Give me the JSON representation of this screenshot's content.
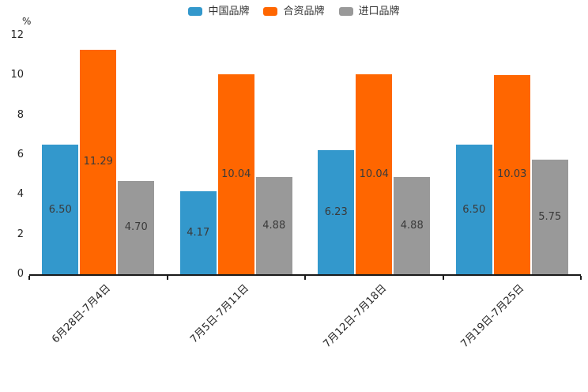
{
  "chart_data": {
    "type": "bar",
    "title": "",
    "unit_label": "%",
    "xlabel": "",
    "ylabel": "%",
    "ylim": [
      0,
      12
    ],
    "yticks": [
      0,
      2,
      4,
      6,
      8,
      10,
      12
    ],
    "grid": false,
    "legend_position": "top",
    "categories": [
      "6月28日-7月4日",
      "7月5日-7月11日",
      "7月12日-7月18日",
      "7月19日-7月25日"
    ],
    "series": [
      {
        "name": "中国品牌",
        "color": "#3398CC",
        "values": [
          6.5,
          4.17,
          6.23,
          6.5
        ],
        "labels": [
          "6.50",
          "4.17",
          "6.23",
          "6.50"
        ]
      },
      {
        "name": "合资品牌",
        "color": "#FF6600",
        "values": [
          11.29,
          10.04,
          10.04,
          10.03
        ],
        "labels": [
          "11.29",
          "10.04",
          "10.04",
          "10.03"
        ]
      },
      {
        "name": "进口品牌",
        "color": "#999999",
        "values": [
          4.7,
          4.88,
          4.88,
          5.75
        ],
        "labels": [
          "4.70",
          "4.88",
          "4.88",
          "5.75"
        ]
      }
    ],
    "axis_color": "#1a1a1a",
    "text_color": "#262626",
    "value_label_color": "#3a3a3a"
  }
}
